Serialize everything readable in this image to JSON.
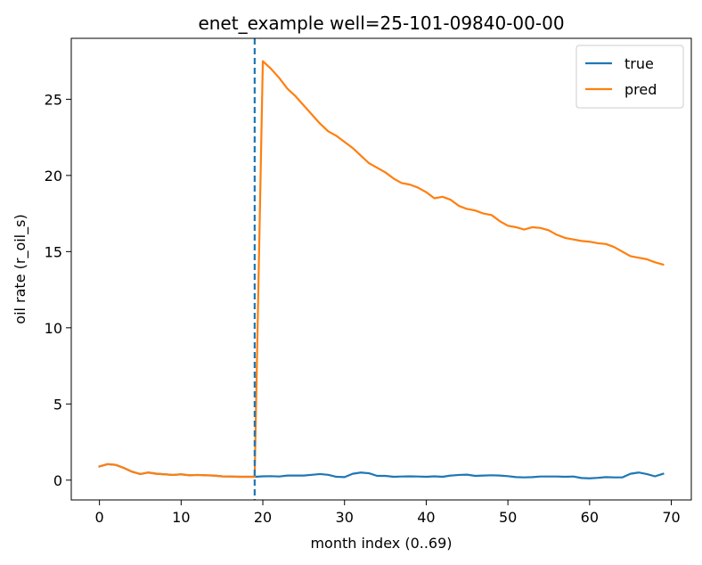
{
  "chart_data": {
    "type": "line",
    "title": "enet_example well=25-101-09840-00-00",
    "xlabel": "month index (0..69)",
    "ylabel": "oil rate (r_oil_s)",
    "xlim": [
      -3.45,
      72.45
    ],
    "ylim": [
      -1.3,
      29.0
    ],
    "xticks": [
      0,
      10,
      20,
      30,
      40,
      50,
      60,
      70
    ],
    "yticks": [
      0,
      5,
      10,
      15,
      20,
      25
    ],
    "grid": false,
    "legend_position": "top-right",
    "vline": {
      "x": 19,
      "style": "dashed",
      "color": "#1f77b4"
    },
    "series": [
      {
        "name": "true",
        "color": "#1f77b4",
        "x": [
          0,
          1,
          2,
          3,
          4,
          5,
          6,
          7,
          8,
          9,
          10,
          11,
          12,
          13,
          14,
          15,
          16,
          17,
          18,
          19,
          20,
          21,
          22,
          23,
          24,
          25,
          26,
          27,
          28,
          29,
          30,
          31,
          32,
          33,
          34,
          35,
          36,
          37,
          38,
          39,
          40,
          41,
          42,
          43,
          44,
          45,
          46,
          47,
          48,
          49,
          50,
          51,
          52,
          53,
          54,
          55,
          56,
          57,
          58,
          59,
          60,
          61,
          62,
          63,
          64,
          65,
          66,
          67,
          68,
          69
        ],
        "values": [
          0.9,
          1.05,
          1.0,
          0.8,
          0.55,
          0.4,
          0.5,
          0.42,
          0.38,
          0.34,
          0.38,
          0.32,
          0.34,
          0.32,
          0.3,
          0.25,
          0.24,
          0.22,
          0.22,
          0.22,
          0.25,
          0.26,
          0.24,
          0.3,
          0.3,
          0.3,
          0.35,
          0.4,
          0.35,
          0.22,
          0.2,
          0.42,
          0.5,
          0.45,
          0.28,
          0.28,
          0.22,
          0.24,
          0.25,
          0.24,
          0.22,
          0.25,
          0.22,
          0.3,
          0.34,
          0.36,
          0.28,
          0.3,
          0.32,
          0.3,
          0.26,
          0.2,
          0.18,
          0.2,
          0.24,
          0.24,
          0.24,
          0.22,
          0.24,
          0.14,
          0.12,
          0.15,
          0.2,
          0.18,
          0.18,
          0.42,
          0.5,
          0.4,
          0.25,
          0.42
        ]
      },
      {
        "name": "pred",
        "color": "#ff7f0e",
        "x": [
          0,
          1,
          2,
          3,
          4,
          5,
          6,
          7,
          8,
          9,
          10,
          11,
          12,
          13,
          14,
          15,
          16,
          17,
          18,
          19,
          20,
          21,
          22,
          23,
          24,
          25,
          26,
          27,
          28,
          29,
          30,
          31,
          32,
          33,
          34,
          35,
          36,
          37,
          38,
          39,
          40,
          41,
          42,
          43,
          44,
          45,
          46,
          47,
          48,
          49,
          50,
          51,
          52,
          53,
          54,
          55,
          56,
          57,
          58,
          59,
          60,
          61,
          62,
          63,
          64,
          65,
          66,
          67,
          68,
          69
        ],
        "values": [
          0.9,
          1.05,
          1.0,
          0.8,
          0.55,
          0.4,
          0.5,
          0.42,
          0.38,
          0.34,
          0.38,
          0.32,
          0.34,
          0.32,
          0.3,
          0.25,
          0.24,
          0.22,
          0.22,
          0.22,
          27.5,
          27.0,
          26.4,
          25.7,
          25.2,
          24.6,
          24.0,
          23.4,
          22.9,
          22.6,
          22.2,
          21.8,
          21.3,
          20.8,
          20.5,
          20.2,
          19.8,
          19.5,
          19.4,
          19.2,
          18.9,
          18.5,
          18.6,
          18.4,
          18.0,
          17.8,
          17.7,
          17.5,
          17.4,
          17.0,
          16.7,
          16.6,
          16.45,
          16.6,
          16.55,
          16.4,
          16.1,
          15.9,
          15.8,
          15.7,
          15.65,
          15.55,
          15.5,
          15.3,
          15.0,
          14.7,
          14.6,
          14.5,
          14.3,
          14.15
        ]
      }
    ]
  }
}
